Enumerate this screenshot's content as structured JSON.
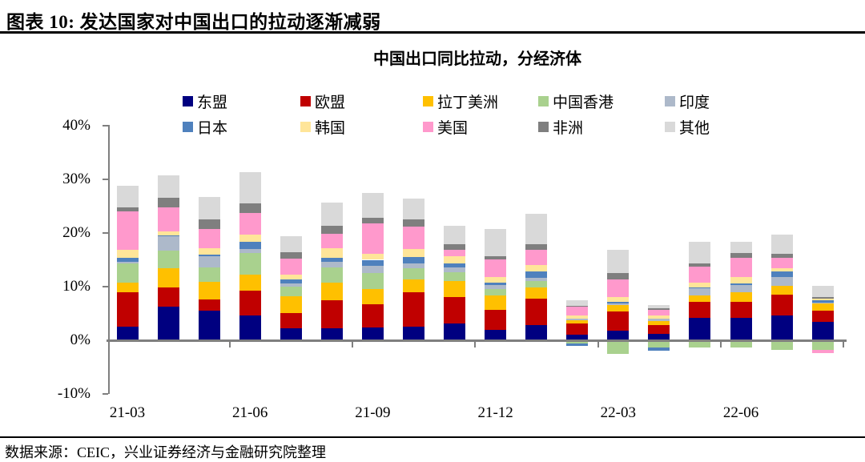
{
  "header": {
    "title": "图表 10: 发达国家对中国出口的拉动逐渐减弱"
  },
  "chart": {
    "subtitle": "中国出口同比拉动，分经济体"
  },
  "footer": {
    "source": "数据来源：CEIC，兴业证券经济与金融研究院整理"
  },
  "colors": {
    "axis": "#7f7f7f",
    "rule": "#000000"
  },
  "chart_data": {
    "type": "bar",
    "stacked": true,
    "unit": "%",
    "title": "中国出口同比拉动，分经济体",
    "grid": false,
    "legend_position": "top",
    "ylim": [
      -10,
      40
    ],
    "y_ticks": [
      {
        "label": "40%",
        "value": 40
      },
      {
        "label": "30%",
        "value": 30
      },
      {
        "label": "20%",
        "value": 20
      },
      {
        "label": "10%",
        "value": 10
      },
      {
        "label": "0%",
        "value": 0
      },
      {
        "label": "-10%",
        "value": -10
      }
    ],
    "categories": [
      "21-03",
      "21-04",
      "21-05",
      "21-06",
      "21-07",
      "21-08",
      "21-09",
      "21-10",
      "21-11",
      "21-12",
      "22-01",
      "22-02",
      "22-03",
      "22-04",
      "22-05",
      "22-06",
      "22-07",
      "22-08"
    ],
    "x_axis_labels": [
      {
        "label": "21-03",
        "category_index": 0
      },
      {
        "label": "21-06",
        "category_index": 3
      },
      {
        "label": "21-09",
        "category_index": 6
      },
      {
        "label": "21-12",
        "category_index": 9
      },
      {
        "label": "22-03",
        "category_index": 12
      },
      {
        "label": "22-06",
        "category_index": 15
      }
    ],
    "series": [
      {
        "name": "东盟",
        "color": "#000080",
        "values": [
          2.6,
          6.2,
          5.5,
          4.7,
          2.2,
          2.3,
          2.4,
          2.6,
          3.1,
          2.0,
          2.8,
          1.0,
          1.8,
          1.2,
          4.2,
          4.2,
          4.7,
          3.5
        ]
      },
      {
        "name": "欧盟",
        "color": "#C00000",
        "values": [
          6.4,
          3.7,
          2.1,
          4.5,
          2.9,
          5.2,
          4.3,
          6.4,
          5.0,
          3.7,
          5.0,
          2.2,
          3.5,
          1.7,
          2.9,
          2.9,
          3.8,
          2.0
        ]
      },
      {
        "name": "拉丁美洲",
        "color": "#FFC000",
        "values": [
          1.8,
          3.5,
          3.3,
          3.1,
          3.1,
          3.3,
          2.9,
          2.4,
          3.0,
          2.6,
          2.0,
          0.5,
          1.2,
          0.7,
          1.3,
          1.9,
          1.6,
          1.3
        ]
      },
      {
        "name": "中国香港",
        "color": "#A9D18E",
        "values": [
          3.5,
          3.3,
          2.7,
          4.0,
          1.8,
          2.8,
          3.0,
          2.0,
          1.6,
          1.3,
          1.2,
          -0.6,
          -2.6,
          -1.4,
          -1.3,
          -1.3,
          -1.8,
          -1.8
        ]
      },
      {
        "name": "印度",
        "color": "#ADB9CA",
        "values": [
          0.4,
          2.7,
          2.1,
          0.7,
          0.6,
          1.1,
          1.3,
          0.9,
          0.9,
          0.7,
          0.7,
          0.4,
          0.4,
          0.5,
          1.3,
          1.3,
          1.7,
          0.2
        ]
      },
      {
        "name": "日本",
        "color": "#4F81BD",
        "values": [
          0.7,
          0.2,
          0.2,
          1.4,
          0.8,
          0.7,
          1.1,
          1.2,
          0.7,
          0.5,
          1.1,
          -0.5,
          0.3,
          -0.5,
          0.2,
          0.3,
          1.1,
          0.4
        ]
      },
      {
        "name": "韩国",
        "color": "#FFE599",
        "values": [
          1.4,
          0.7,
          1.3,
          1.3,
          0.9,
          1.7,
          1.1,
          1.5,
          1.4,
          1.0,
          1.3,
          0.5,
          0.8,
          0.5,
          0.8,
          1.2,
          0.5,
          0.3
        ]
      },
      {
        "name": "美国",
        "color": "#FF99CC",
        "values": [
          7.2,
          4.5,
          3.6,
          4.0,
          2.9,
          2.8,
          5.7,
          4.2,
          1.1,
          3.3,
          2.7,
          1.7,
          3.4,
          1.1,
          3.0,
          3.6,
          1.9,
          -0.6
        ]
      },
      {
        "name": "非洲",
        "color": "#7F7F7F",
        "values": [
          0.8,
          1.8,
          1.7,
          1.8,
          1.2,
          1.5,
          1.1,
          1.4,
          1.1,
          0.5,
          1.1,
          0.1,
          1.1,
          0.2,
          0.6,
          0.9,
          0.8,
          0.3
        ]
      },
      {
        "name": "其他",
        "color": "#D9D9D9",
        "values": [
          4.0,
          4.2,
          4.2,
          5.9,
          3.0,
          4.3,
          4.6,
          3.8,
          3.5,
          5.2,
          5.7,
          1.0,
          4.4,
          0.7,
          4.0,
          2.1,
          3.6,
          2.2
        ]
      }
    ]
  }
}
